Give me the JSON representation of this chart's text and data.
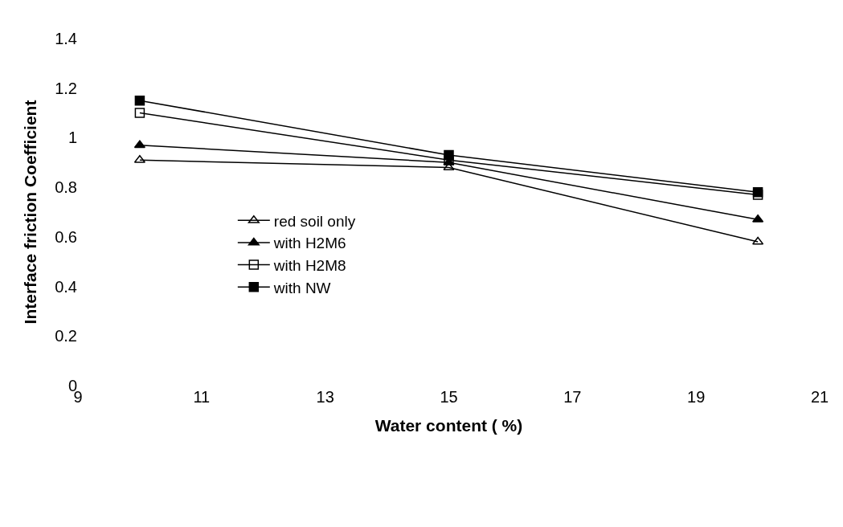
{
  "chart_data": {
    "type": "line",
    "xlabel": "Water content ( %)",
    "ylabel": "Interface friction Coefficient",
    "x": [
      10,
      15,
      20
    ],
    "series": [
      {
        "name": "red soil only",
        "color": "#000000",
        "marker": "triangle",
        "values": [
          0.91,
          0.88,
          0.58
        ]
      },
      {
        "name": "with H2M6",
        "color": "#000000",
        "marker": "triangle",
        "values": [
          0.97,
          0.9,
          0.67
        ]
      },
      {
        "name": "with H2M8",
        "color": "#000000",
        "marker": "square",
        "values": [
          1.1,
          0.91,
          0.77
        ]
      },
      {
        "name": "with NW",
        "color": "#000000",
        "marker": "square",
        "values": [
          1.15,
          0.93,
          0.78
        ]
      }
    ],
    "xlim": [
      9,
      21
    ],
    "xticks": [
      9,
      11,
      13,
      15,
      17,
      19,
      21
    ],
    "ylim": [
      0,
      1.4
    ],
    "yticks": [
      0,
      {
        "value": 0.2,
        "label": "0.2"
      },
      {
        "value": 0.4,
        "label": "0.4"
      },
      {
        "value": 0.6,
        "label": "0.6"
      },
      {
        "value": 0.8,
        "label": "0.8"
      },
      1,
      {
        "value": 1.2,
        "label": "1.2"
      },
      {
        "value": 1.4,
        "label": "1.4"
      }
    ],
    "grid": false,
    "legend": "left",
    "line_style": "solid"
  }
}
